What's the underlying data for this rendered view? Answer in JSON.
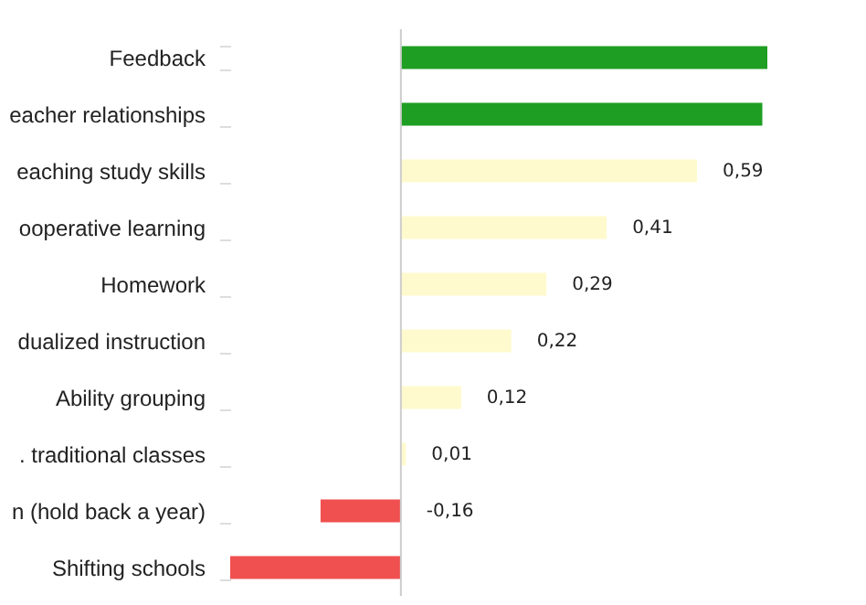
{
  "chart_data": {
    "type": "bar",
    "orientation": "horizontal",
    "categories": [
      "Feedback",
      "eacher relationships",
      "eaching study skills",
      "ooperative learning",
      "Homework",
      "dualized instruction",
      "Ability grouping",
      ". traditional classes",
      "n (hold back a year)",
      "Shifting schools"
    ],
    "values": [
      0.73,
      0.72,
      0.59,
      0.41,
      0.29,
      0.22,
      0.12,
      0.01,
      -0.16,
      -0.34
    ],
    "colors": [
      "#1e9e22",
      "#1e9e22",
      "#fffacd",
      "#fffacd",
      "#fffacd",
      "#fffacd",
      "#fffacd",
      "#fffacd",
      "#f05050",
      "#f05050"
    ],
    "value_labels": [
      null,
      null,
      "0,59",
      "0,41",
      "0,29",
      "0,22",
      "0,12",
      "0,01",
      "-0,16",
      null
    ]
  }
}
